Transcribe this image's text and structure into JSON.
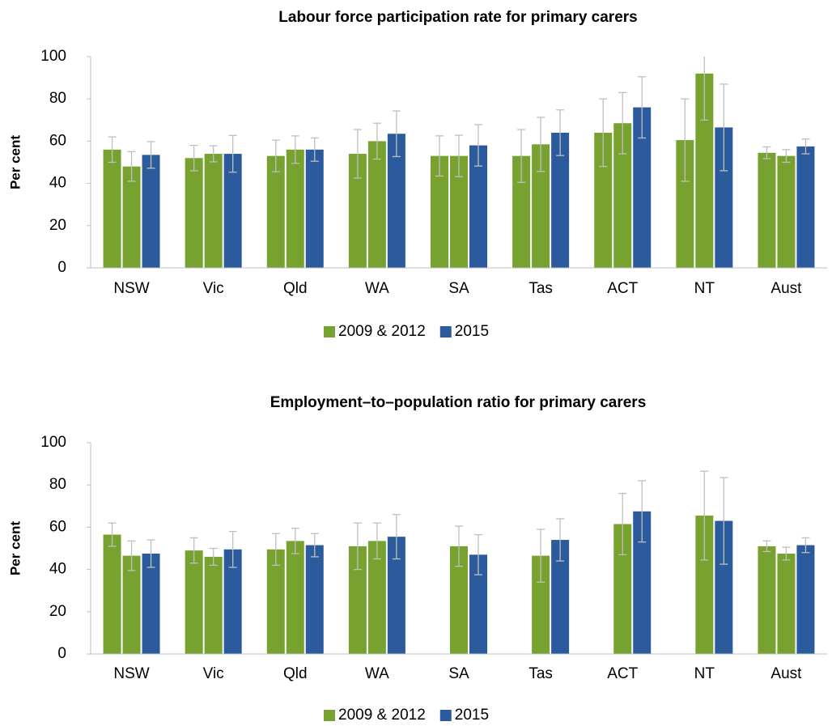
{
  "chart_data": [
    {
      "type": "bar",
      "title": "Labour force participation rate for primary carers",
      "y_label": "Per cent",
      "categories": [
        "NSW",
        "Vic",
        "Qld",
        "WA",
        "SA",
        "Tas",
        "ACT",
        "NT",
        "Aust"
      ],
      "series": [
        {
          "name": "2009 & 2012",
          "color": "#77a22f",
          "values": [
            56,
            52,
            53,
            54,
            53,
            53,
            64,
            60.5,
            54.5
          ],
          "errors": [
            6,
            6,
            7.5,
            11.5,
            9.5,
            12.5,
            16,
            19.5,
            2.8
          ]
        },
        {
          "color": "#77a22f",
          "values": [
            48,
            54,
            56,
            60,
            53,
            58.5,
            68.5,
            92,
            53
          ],
          "errors": [
            7,
            3.8,
            6.5,
            8.5,
            9.8,
            12.8,
            14.5,
            22,
            3
          ]
        },
        {
          "name": "2015",
          "color": "#2b5b9c",
          "values": [
            53.5,
            54,
            56,
            63.5,
            58,
            64,
            76,
            66.5,
            57.5
          ],
          "errors": [
            6.3,
            8.7,
            5.5,
            10.8,
            9.8,
            10.8,
            14.5,
            20.5,
            3.5
          ]
        }
      ],
      "ylim": [
        0,
        100
      ],
      "yticks": [
        0,
        20,
        40,
        60,
        80,
        100
      ],
      "grid": false
    },
    {
      "type": "bar",
      "title": "Employment–to–population  ratio for primary carers",
      "y_label": "Per cent",
      "categories": [
        "NSW",
        "Vic",
        "Qld",
        "WA",
        "SA",
        "Tas",
        "ACT",
        "NT",
        "Aust"
      ],
      "series": [
        {
          "name": "2009 & 2012",
          "color": "#77a22f",
          "values": [
            56.5,
            49,
            49.5,
            51,
            null,
            null,
            null,
            null,
            51
          ],
          "errors": [
            5.5,
            6,
            7.5,
            11,
            null,
            null,
            null,
            null,
            2.5
          ]
        },
        {
          "color": "#77a22f",
          "values": [
            46.5,
            46,
            53.5,
            53.5,
            51,
            46.5,
            61.5,
            65.5,
            47.5
          ],
          "errors": [
            7,
            4,
            6,
            8.5,
            9.5,
            12.5,
            14.5,
            21,
            3
          ]
        },
        {
          "name": "2015",
          "color": "#2b5b9c",
          "values": [
            47.5,
            49.5,
            51.5,
            55.5,
            47,
            54,
            67.5,
            63,
            51.5
          ],
          "errors": [
            6.5,
            8.5,
            5.5,
            10.5,
            9.5,
            10,
            14.5,
            20.5,
            3.5
          ]
        }
      ],
      "ylim": [
        0,
        100
      ],
      "yticks": [
        0,
        20,
        40,
        60,
        80,
        100
      ],
      "grid": false
    }
  ]
}
